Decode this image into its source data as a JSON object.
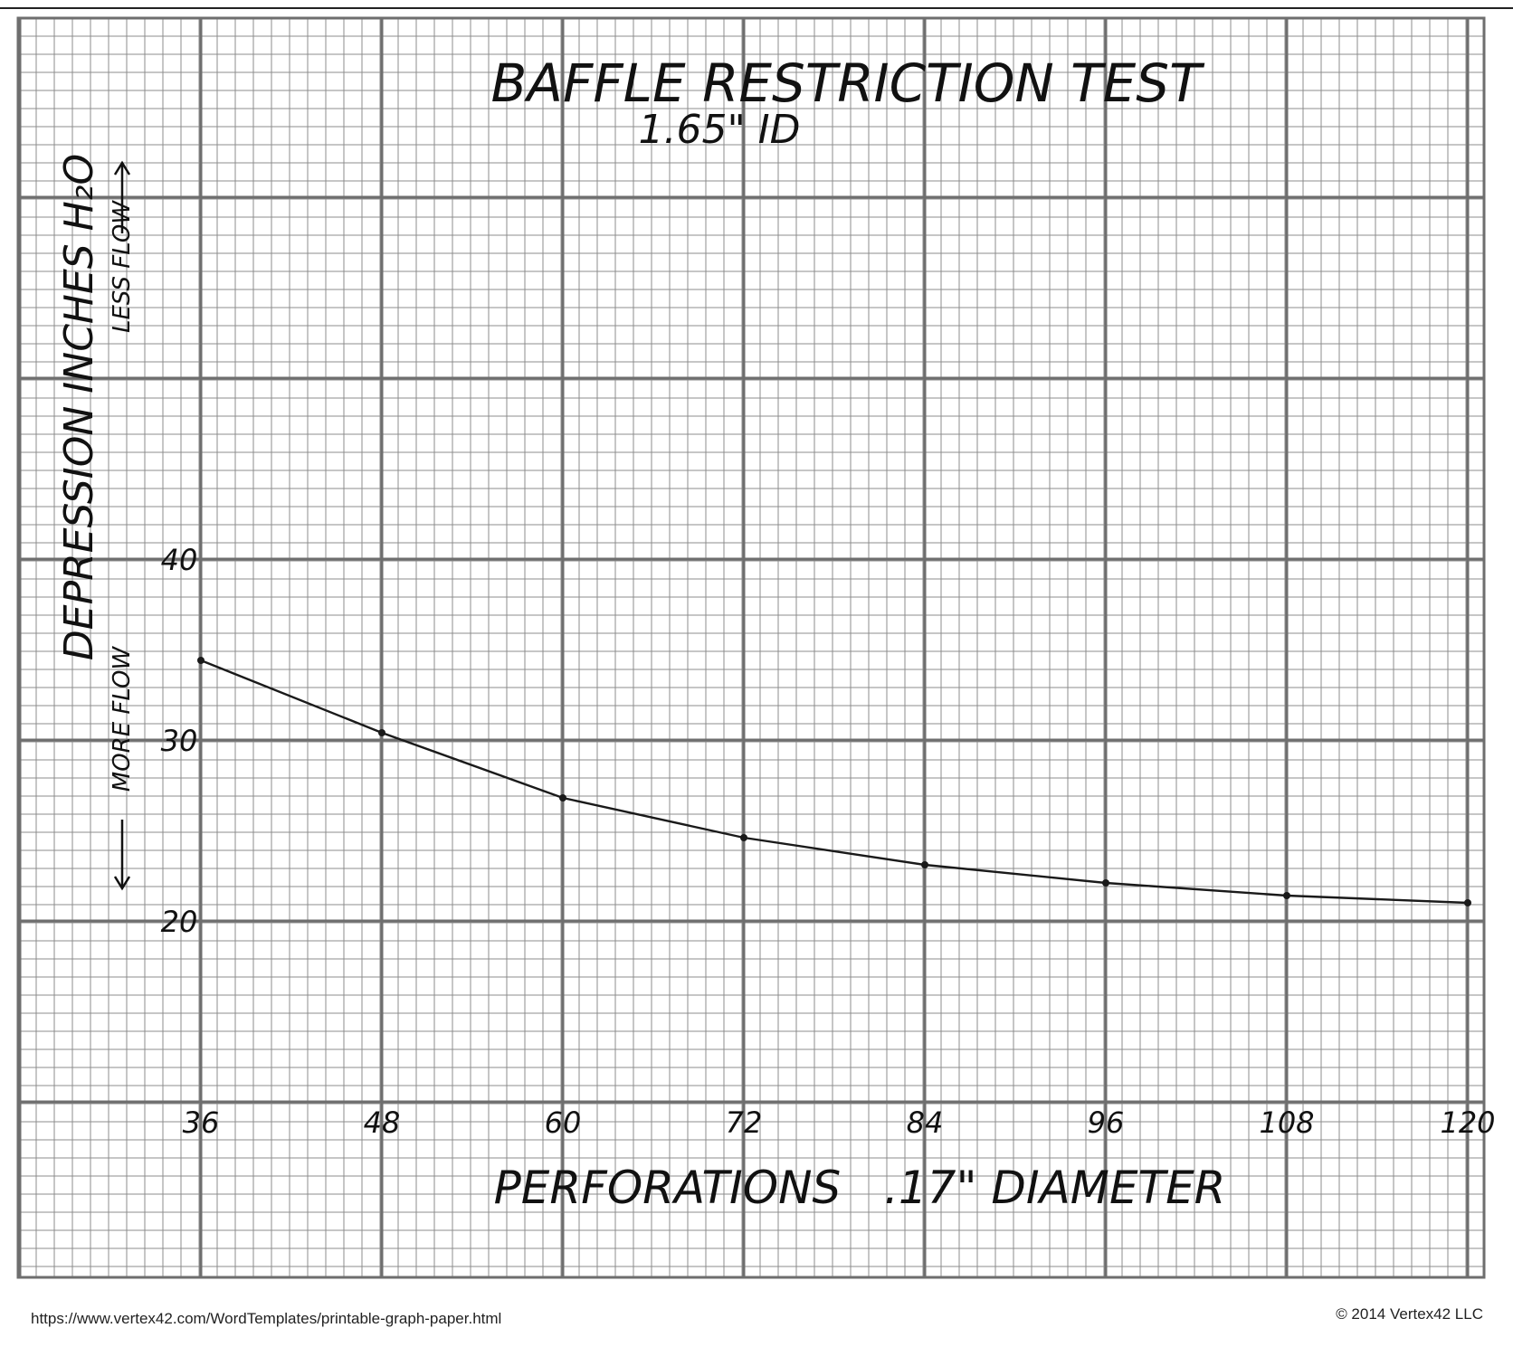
{
  "chart_data": {
    "type": "line",
    "title": "BAFFLE RESTRICTION TEST",
    "subtitle": "1.65\" ID",
    "xlabel": "PERFORATIONS   .17\" DIAMETER",
    "ylabel": "DEPRESSION   INCHES  H₂O",
    "y_annotation_up": "LESS FLOW",
    "y_annotation_down": "MORE FLOW",
    "x": [
      36,
      48,
      60,
      72,
      84,
      96,
      108,
      120
    ],
    "y": [
      34.4,
      30.4,
      26.8,
      24.6,
      23.1,
      22.1,
      21.4,
      21.0
    ],
    "x_ticks": [
      "36",
      "48",
      "60",
      "72",
      "84",
      "96",
      "108",
      "120"
    ],
    "y_ticks": [
      "20",
      "30",
      "40"
    ],
    "xlim": [
      24,
      120
    ],
    "ylim": [
      15,
      45
    ],
    "grid": true,
    "legend": "none",
    "line_color": "#1a1a1a",
    "grid_color": "#8c8c8c"
  },
  "footer": {
    "url": "https://www.vertex42.com/WordTemplates/printable-graph-paper.html",
    "copyright": "© 2014 Vertex42 LLC"
  }
}
